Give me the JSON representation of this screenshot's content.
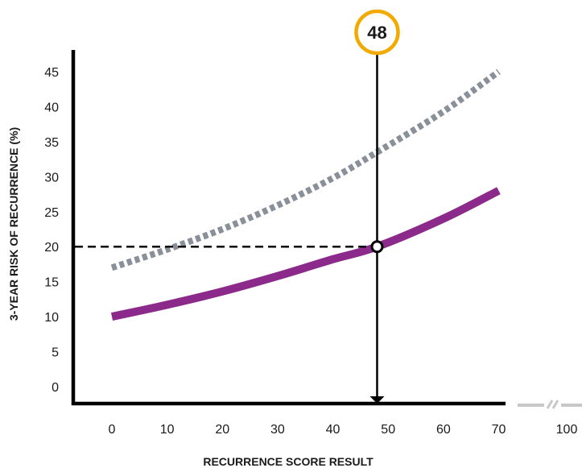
{
  "chart_data": {
    "type": "line",
    "xlabel": "RECURRENCE SCORE RESULT",
    "ylabel": "3-YEAR RISK OF RECURRENCE (%)",
    "x_ticks": [
      "0",
      "10",
      "20",
      "30",
      "40",
      "50",
      "60",
      "70",
      "100"
    ],
    "y_ticks": [
      "0",
      "5",
      "10",
      "15",
      "20",
      "25",
      "30",
      "35",
      "40",
      "45"
    ],
    "xlim": [
      0,
      70
    ],
    "ylim": [
      0,
      45
    ],
    "series": [
      {
        "style": "dotted",
        "color": "#8a9099",
        "x": [
          0,
          10,
          20,
          30,
          40,
          48,
          60,
          70
        ],
        "y": [
          17,
          19.6,
          22.5,
          25.9,
          29.8,
          33.5,
          39.3,
          45
        ]
      },
      {
        "style": "solid",
        "color": "#8b2a8b",
        "x": [
          0,
          10,
          20,
          30,
          40,
          48,
          60,
          70
        ],
        "y": [
          10,
          11.7,
          13.6,
          15.8,
          18.2,
          20,
          24,
          28
        ]
      }
    ],
    "marker": {
      "x": 48,
      "y": 20,
      "label": "48",
      "circle_color": "#f2a900"
    },
    "grid": false,
    "legend": "none"
  }
}
